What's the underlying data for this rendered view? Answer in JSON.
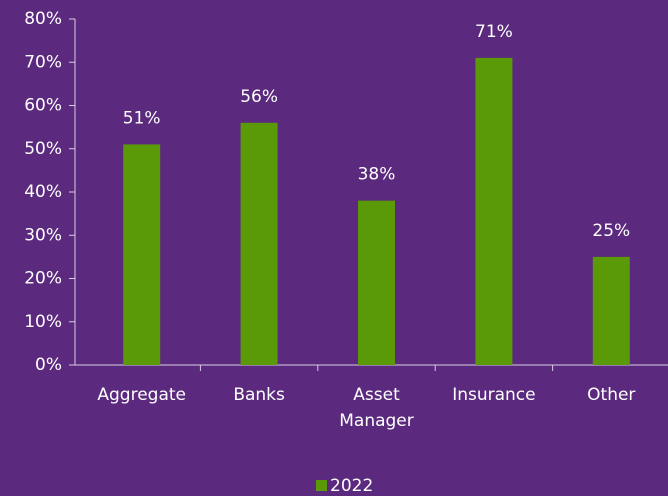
{
  "chart_data": {
    "type": "bar",
    "categories": [
      "Aggregate",
      "Banks",
      "Asset Manager",
      "Insurance",
      "Other"
    ],
    "series": [
      {
        "name": "2022",
        "color": "#5a9a08",
        "values": [
          51,
          56,
          38,
          71,
          25
        ],
        "value_labels": [
          "51%",
          "56%",
          "38%",
          "71%",
          "25%"
        ]
      }
    ],
    "ylim": [
      0,
      80
    ],
    "yticks": [
      {
        "value": 0,
        "label": "0%"
      },
      {
        "value": 10,
        "label": "10%"
      },
      {
        "value": 20,
        "label": "20%"
      },
      {
        "value": 30,
        "label": "30%"
      },
      {
        "value": 40,
        "label": "40%"
      },
      {
        "value": 50,
        "label": "50%"
      },
      {
        "value": 60,
        "label": "60%"
      },
      {
        "value": 70,
        "label": "70%"
      },
      {
        "value": 80,
        "label": "80%"
      }
    ],
    "grid": false,
    "legend": "bottom"
  }
}
